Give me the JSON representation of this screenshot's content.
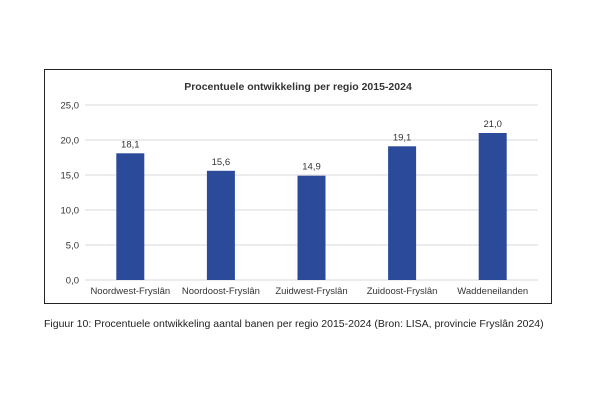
{
  "caption": "Figuur 10: Procentuele ontwikkeling aantal banen per regio 2015-2024 (Bron: LISA, provincie Fryslân 2024)",
  "chart_data": {
    "type": "bar",
    "title": "Procentuele ontwikkeling per regio 2015-2024",
    "xlabel": "",
    "ylabel": "",
    "categories": [
      "Noordwest-Fryslân",
      "Noordoost-Fryslân",
      "Zuidwest-Fryslân",
      "Zuidoost-Fryslân",
      "Waddeneilanden"
    ],
    "values": [
      18.1,
      15.6,
      14.9,
      19.1,
      21.0
    ],
    "value_labels": [
      "18,1",
      "15,6",
      "14,9",
      "19,1",
      "21,0"
    ],
    "ylim": [
      0,
      25
    ],
    "yticks": [
      0,
      5,
      10,
      15,
      20,
      25
    ],
    "ytick_labels": [
      "0,0",
      "5,0",
      "10,0",
      "15,0",
      "20,0",
      "25,0"
    ],
    "grid": true,
    "legend": "none",
    "bar_color": "#2b4a9a",
    "grid_color": "#d9d9d9"
  }
}
